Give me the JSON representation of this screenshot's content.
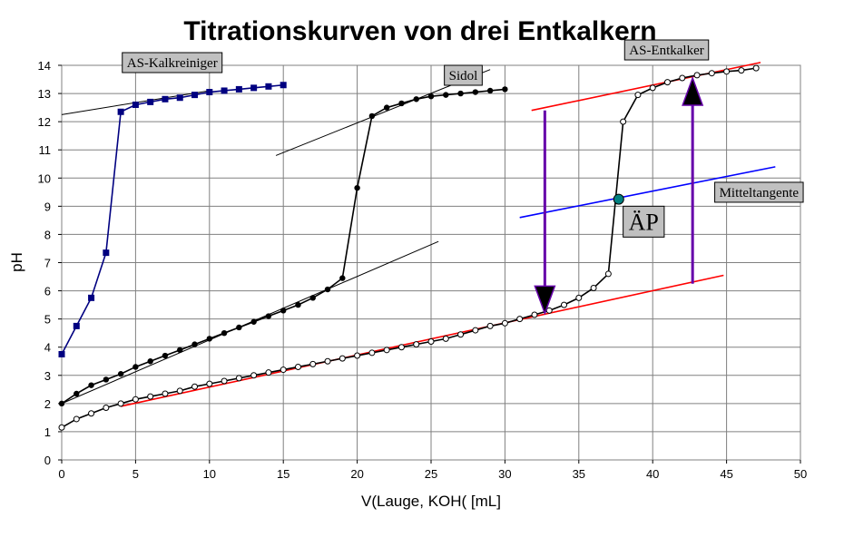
{
  "chart_data": {
    "type": "line",
    "title": "Titrationskurven von drei Entkalkern",
    "xlabel": "V(Lauge, KOH( [mL]",
    "ylabel": "pH",
    "xlim": [
      0,
      50
    ],
    "ylim": [
      0,
      14
    ],
    "xticks": [
      0,
      5,
      10,
      15,
      20,
      25,
      30,
      35,
      40,
      45,
      50
    ],
    "yticks": [
      0,
      1,
      2,
      3,
      4,
      5,
      6,
      7,
      8,
      9,
      10,
      11,
      12,
      13,
      14
    ],
    "grid": true,
    "colors": {
      "kalkreiniger": "#000080",
      "sidol": "#000000",
      "entkalker": "#000000",
      "tangent_red": "#ff0000",
      "tangent_blue": "#0000ff",
      "arrow": "#6600aa",
      "equivalence_point": "#008080",
      "label_box": "#c0c0c0"
    },
    "series": [
      {
        "name": "AS-Kalkreiniger",
        "marker": "square",
        "x": [
          0,
          1,
          2,
          3,
          4,
          5,
          6,
          7,
          8,
          9,
          10,
          11,
          12,
          13,
          14,
          15
        ],
        "y": [
          3.75,
          4.75,
          5.75,
          7.35,
          12.35,
          12.6,
          12.7,
          12.8,
          12.85,
          12.95,
          13.05,
          13.1,
          13.15,
          13.2,
          13.25,
          13.3
        ]
      },
      {
        "name": "Sidol",
        "marker": "filled-circle",
        "x": [
          0,
          1,
          2,
          3,
          4,
          5,
          6,
          7,
          8,
          9,
          10,
          11,
          12,
          13,
          14,
          15,
          16,
          17,
          18,
          19,
          20,
          21,
          22,
          23,
          24,
          25,
          26,
          27,
          28,
          29,
          30
        ],
        "y": [
          2.0,
          2.35,
          2.65,
          2.85,
          3.05,
          3.3,
          3.5,
          3.7,
          3.9,
          4.1,
          4.3,
          4.5,
          4.7,
          4.9,
          5.1,
          5.3,
          5.5,
          5.75,
          6.05,
          6.45,
          9.65,
          12.2,
          12.5,
          12.65,
          12.8,
          12.9,
          12.95,
          13.0,
          13.05,
          13.1,
          13.15
        ]
      },
      {
        "name": "AS-Entkalker",
        "marker": "open-circle",
        "x": [
          0,
          1,
          2,
          3,
          4,
          5,
          6,
          7,
          8,
          9,
          10,
          11,
          12,
          13,
          14,
          15,
          16,
          17,
          18,
          19,
          20,
          21,
          22,
          23,
          24,
          25,
          26,
          27,
          28,
          29,
          30,
          31,
          32,
          33,
          34,
          35,
          36,
          37,
          38,
          39,
          40,
          41,
          42,
          43,
          44,
          45,
          46,
          47
        ],
        "y": [
          1.15,
          1.45,
          1.65,
          1.85,
          2.0,
          2.15,
          2.25,
          2.35,
          2.45,
          2.6,
          2.7,
          2.8,
          2.9,
          3.0,
          3.1,
          3.2,
          3.3,
          3.4,
          3.5,
          3.6,
          3.7,
          3.8,
          3.9,
          4.0,
          4.1,
          4.2,
          4.3,
          4.45,
          4.6,
          4.75,
          4.85,
          5.0,
          5.15,
          5.3,
          5.5,
          5.75,
          6.1,
          6.6,
          12.0,
          12.95,
          13.2,
          13.4,
          13.55,
          13.65,
          13.72,
          13.78,
          13.82,
          13.9
        ]
      }
    ],
    "tangents": [
      {
        "name": "kalkreiniger-tangent",
        "color": "black",
        "from": [
          0,
          12.25
        ],
        "to": [
          10,
          13.1
        ]
      },
      {
        "name": "sidol-upper-tangent",
        "color": "black",
        "from": [
          14.5,
          10.8
        ],
        "to": [
          29,
          13.85
        ]
      },
      {
        "name": "sidol-lower-tangent",
        "color": "black",
        "from": [
          0,
          2.0
        ],
        "to": [
          25.5,
          7.75
        ]
      },
      {
        "name": "entkalker-upper-tangent",
        "color": "red",
        "from": [
          31.8,
          12.4
        ],
        "to": [
          47.3,
          14.1
        ]
      },
      {
        "name": "entkalker-lower-tangent",
        "color": "red",
        "from": [
          4,
          1.9
        ],
        "to": [
          44.8,
          6.55
        ]
      },
      {
        "name": "mittel-tangent",
        "color": "blue",
        "from": [
          31,
          8.6
        ],
        "to": [
          48.3,
          10.4
        ]
      }
    ],
    "arrows": [
      {
        "name": "arrow-down",
        "x": 32.7,
        "from": 12.4,
        "to": 5.2
      },
      {
        "name": "arrow-up",
        "x": 42.7,
        "from": 6.25,
        "to": 13.55
      }
    ],
    "equivalence_point": {
      "x": 37.7,
      "y": 9.25
    },
    "annotations": [
      {
        "name": "label-kalkreiniger",
        "text": "AS-Kalkreiniger",
        "x": 4.1,
        "y": 14.45,
        "size": "normal"
      },
      {
        "name": "label-sidol",
        "text": "Sidol",
        "x": 25.9,
        "y": 14.0,
        "size": "normal"
      },
      {
        "name": "label-entkalker",
        "text": "AS-Entkalker",
        "x": 38.1,
        "y": 14.9,
        "size": "normal"
      },
      {
        "name": "label-mitteltangente",
        "text": "Mitteltangente",
        "x": 44.2,
        "y": 9.85,
        "size": "normal"
      },
      {
        "name": "label-aep",
        "text": "ÄP",
        "x": 38.0,
        "y": 9.0,
        "size": "big"
      }
    ]
  }
}
